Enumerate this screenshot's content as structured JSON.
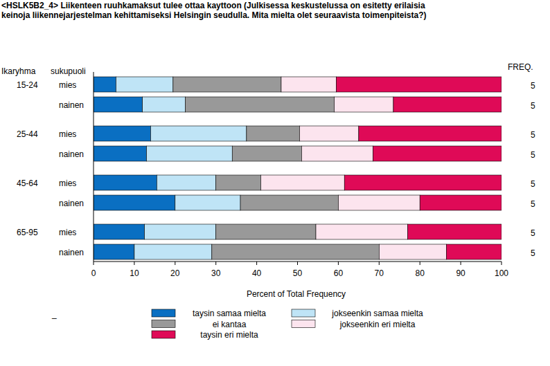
{
  "chart_data": {
    "type": "bar",
    "title": "<HSLK5B2_4> Liikenteen ruuhkamaksut tulee ottaa kayttoon (Julkisessa keskustelussa on esitetty erilaisia keinoja liikennejarjestelman kehittamiseksi Helsingin seudulla. Mita mielta olet seuraavista toimenpiteista?)",
    "group_header": "Ikaryhma",
    "category_header": "sukupuoli",
    "freq_header": "FREQ.",
    "x_label": "Percent of Total Frequency",
    "legend_title": "_",
    "groups": [
      "15-24",
      "25-44",
      "45-64",
      "65-95"
    ],
    "categories": [
      "mies",
      "nainen",
      "mies",
      "nainen",
      "mies",
      "nainen",
      "mies",
      "nainen"
    ],
    "freq": [
      5,
      5,
      5,
      5,
      5,
      5,
      5,
      5
    ],
    "orientation": "horizontal",
    "stacked": true,
    "xlim": [
      0,
      100
    ],
    "xticks": [
      0,
      10,
      20,
      30,
      40,
      50,
      60,
      70,
      80,
      90,
      100
    ],
    "series": [
      {
        "name": "taysin samaa mielta",
        "color": "#0a6fc2",
        "values": [
          5.5,
          12,
          14,
          13,
          15.5,
          20,
          12.5,
          10
        ]
      },
      {
        "name": "jokseenkin samaa mielta",
        "color": "#bfe4f6",
        "values": [
          14,
          10.5,
          23.5,
          21,
          14.5,
          16,
          17.5,
          19
        ]
      },
      {
        "name": "ei kantaa",
        "color": "#999999",
        "values": [
          26.5,
          36.5,
          13,
          17,
          11,
          24,
          24.5,
          41
        ]
      },
      {
        "name": "jokseenkin eri mielta",
        "color": "#fce4ee",
        "values": [
          13.5,
          14.5,
          14.5,
          17.5,
          20.5,
          20,
          22.5,
          16.5
        ]
      },
      {
        "name": "taysin eri mielta",
        "color": "#df0a57",
        "values": [
          40.5,
          26.5,
          35,
          31.5,
          38.5,
          20,
          23,
          13.5
        ]
      }
    ]
  }
}
